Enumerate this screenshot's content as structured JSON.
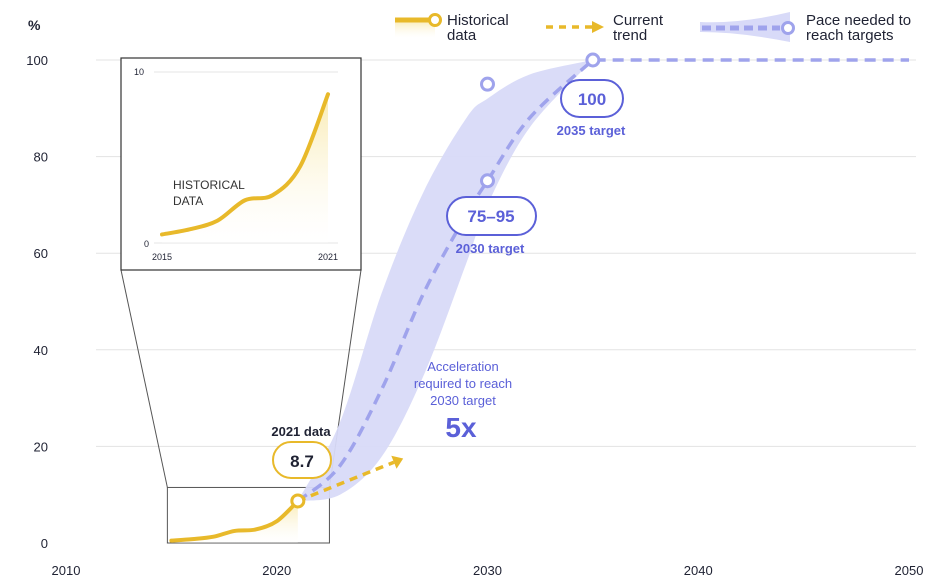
{
  "chart_data": {
    "type": "line",
    "unit_label": "%",
    "xlim": [
      2010,
      2050
    ],
    "ylim": [
      0,
      100
    ],
    "x_ticks": [
      "2010",
      "2020",
      "2030",
      "2040",
      "2050"
    ],
    "y_ticks": [
      "0",
      "20",
      "40",
      "60",
      "80",
      "100"
    ],
    "legend": [
      {
        "name": "Historical\ndata",
        "icon": "historical-line-icon"
      },
      {
        "name": "Current\ntrend",
        "icon": "dashed-arrow-icon"
      },
      {
        "name": "Pace needed to\nreach targets",
        "icon": "band-dashed-icon"
      }
    ],
    "series": [
      {
        "name": "Historical data",
        "x": [
          2015,
          2016,
          2017,
          2018,
          2019,
          2020,
          2021
        ],
        "values": [
          0.5,
          0.8,
          1.3,
          2.5,
          2.8,
          4.5,
          8.7
        ]
      },
      {
        "name": "Current trend",
        "x": [
          2021,
          2026
        ],
        "values": [
          8.7,
          17.5
        ]
      },
      {
        "name": "Pace needed to reach targets",
        "x": [
          2021,
          2023,
          2025,
          2027,
          2029,
          2030,
          2032,
          2035,
          2050
        ],
        "values": [
          8.7,
          16,
          32,
          52,
          68,
          75,
          88,
          100,
          100
        ]
      },
      {
        "name": "Band upper",
        "x": [
          2021,
          2023,
          2025,
          2027,
          2029,
          2030,
          2032,
          2035
        ],
        "values": [
          8.7,
          25,
          52,
          73,
          88,
          92,
          97,
          100
        ]
      },
      {
        "name": "Band lower",
        "x": [
          2021,
          2023,
          2025,
          2027,
          2029,
          2030,
          2032,
          2035
        ],
        "values": [
          8.7,
          10,
          18,
          35,
          58,
          70,
          86,
          100
        ]
      }
    ],
    "target_points": [
      {
        "x": 2030,
        "y": 95
      },
      {
        "x": 2030,
        "y": 75
      },
      {
        "x": 2035,
        "y": 100
      }
    ],
    "annotations": {
      "data_2021": {
        "title": "2021 data",
        "value": "8.7",
        "x": 2021,
        "y": 8.7
      },
      "target_2030": {
        "value": "75–95",
        "sub": "2030 target"
      },
      "target_2035": {
        "value": "100",
        "sub": "2035 target"
      },
      "acceleration": {
        "lines": [
          "Acceleration",
          "required to reach",
          "2030 target"
        ],
        "big": "5x"
      }
    },
    "inset": {
      "label_lines": [
        "HISTORICAL",
        "DATA"
      ],
      "x_ticks": [
        "2015",
        "2021"
      ],
      "y_ticks": [
        "0",
        "10"
      ],
      "ylim": [
        0,
        10
      ]
    },
    "colors": {
      "historical": "#e8b92a",
      "historical_fill": "#fbf1c8",
      "pace": "#9fa3ec",
      "band": "#d8daf8",
      "target_text": "#5b60d8",
      "dark_text": "#1f2233"
    }
  }
}
